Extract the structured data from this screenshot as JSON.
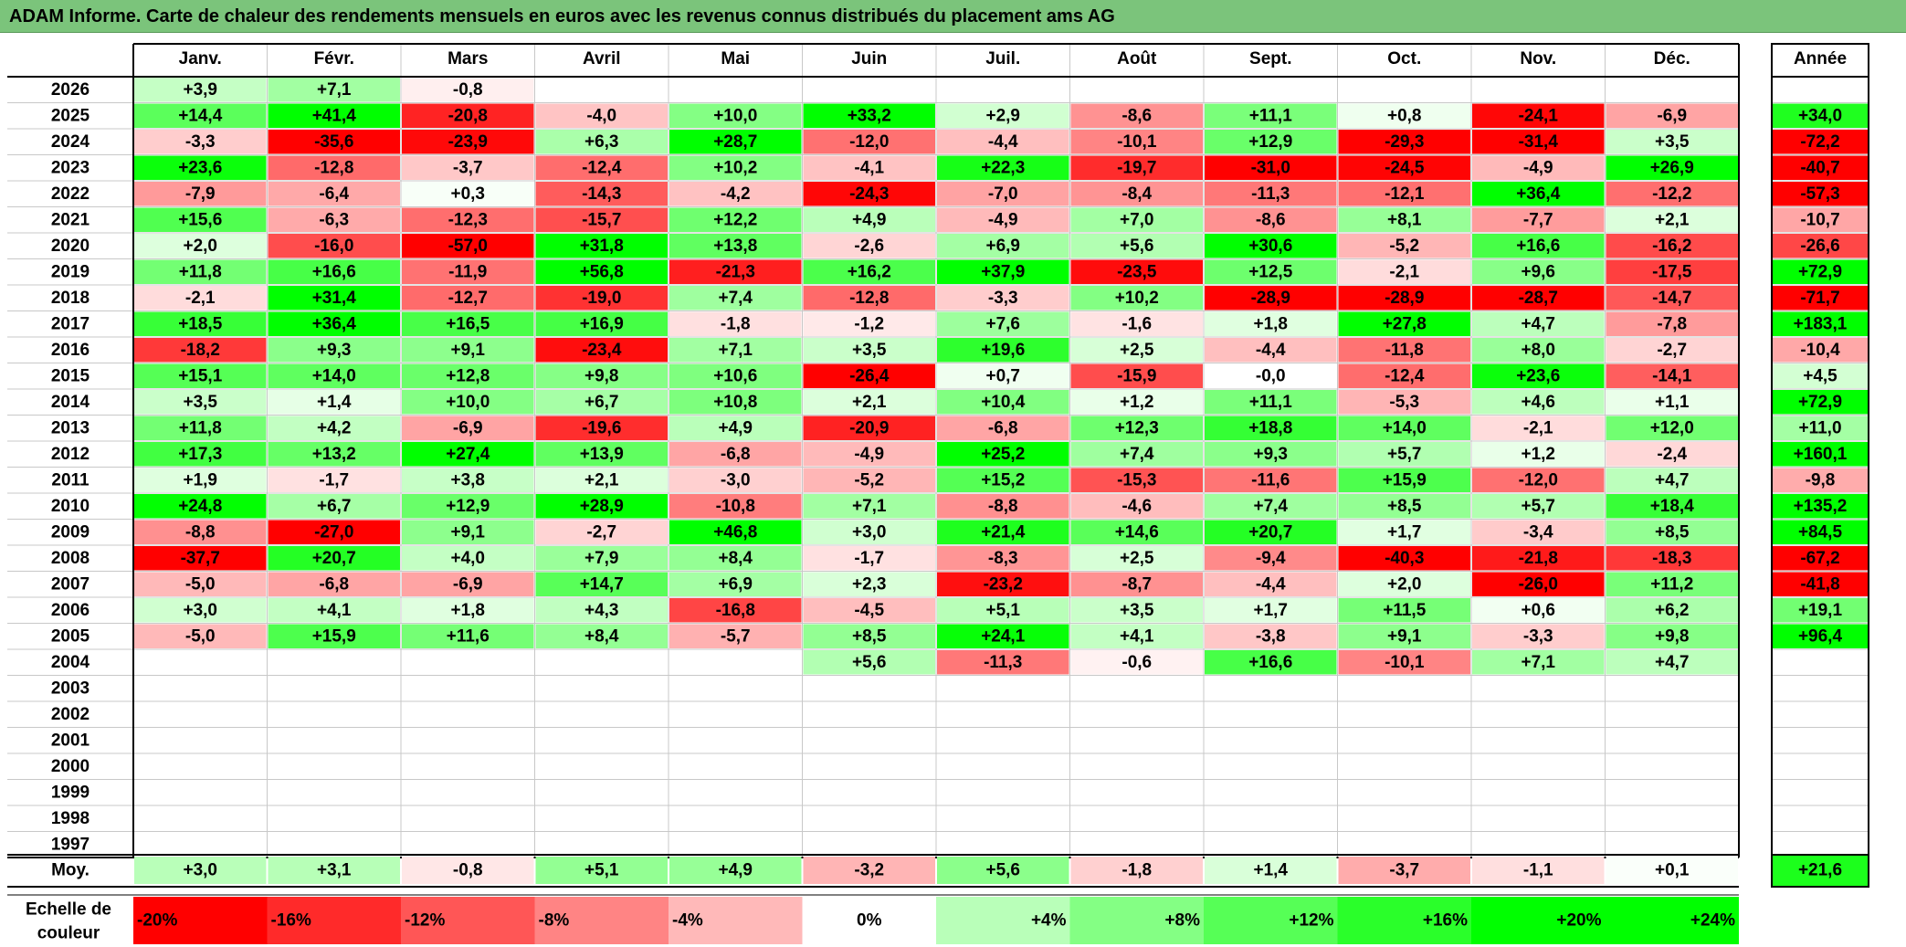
{
  "title": "ADAM Informe. Carte de chaleur des rendements mensuels en euros avec les revenus connus distribués du placement ams AG",
  "chart_data": {
    "type": "heatmap",
    "months": [
      "Janv.",
      "Févr.",
      "Mars",
      "Avril",
      "Mai",
      "Juin",
      "Juil.",
      "Août",
      "Sept.",
      "Oct.",
      "Nov.",
      "Déc."
    ],
    "annual_header": "Année",
    "years": [
      "2026",
      "2025",
      "2024",
      "2023",
      "2022",
      "2021",
      "2020",
      "2019",
      "2018",
      "2017",
      "2016",
      "2015",
      "2014",
      "2013",
      "2012",
      "2011",
      "2010",
      "2009",
      "2008",
      "2007",
      "2006",
      "2005",
      "2004",
      "2003",
      "2002",
      "2001",
      "2000",
      "1999",
      "1998",
      "1997"
    ],
    "values": [
      [
        "+3,9",
        "+7,1",
        "-0,8",
        "",
        "",
        "",
        "",
        "",
        "",
        "",
        "",
        ""
      ],
      [
        "+14,4",
        "+41,4",
        "-20,8",
        "-4,0",
        "+10,0",
        "+33,2",
        "+2,9",
        "-8,6",
        "+11,1",
        "+0,8",
        "-24,1",
        "-6,9"
      ],
      [
        "-3,3",
        "-35,6",
        "-23,9",
        "+6,3",
        "+28,7",
        "-12,0",
        "-4,4",
        "-10,1",
        "+12,9",
        "-29,3",
        "-31,4",
        "+3,5"
      ],
      [
        "+23,6",
        "-12,8",
        "-3,7",
        "-12,4",
        "+10,2",
        "-4,1",
        "+22,3",
        "-19,7",
        "-31,0",
        "-24,5",
        "-4,9",
        "+26,9"
      ],
      [
        "-7,9",
        "-6,4",
        "+0,3",
        "-14,3",
        "-4,2",
        "-24,3",
        "-7,0",
        "-8,4",
        "-11,3",
        "-12,1",
        "+36,4",
        "-12,2"
      ],
      [
        "+15,6",
        "-6,3",
        "-12,3",
        "-15,7",
        "+12,2",
        "+4,9",
        "-4,9",
        "+7,0",
        "-8,6",
        "+8,1",
        "-7,7",
        "+2,1"
      ],
      [
        "+2,0",
        "-16,0",
        "-57,0",
        "+31,8",
        "+13,8",
        "-2,6",
        "+6,9",
        "+5,6",
        "+30,6",
        "-5,2",
        "+16,6",
        "-16,2"
      ],
      [
        "+11,8",
        "+16,6",
        "-11,9",
        "+56,8",
        "-21,3",
        "+16,2",
        "+37,9",
        "-23,5",
        "+12,5",
        "-2,1",
        "+9,6",
        "-17,5"
      ],
      [
        "-2,1",
        "+31,4",
        "-12,7",
        "-19,0",
        "+7,4",
        "-12,8",
        "-3,3",
        "+10,2",
        "-28,9",
        "-28,9",
        "-28,7",
        "-14,7"
      ],
      [
        "+18,5",
        "+36,4",
        "+16,5",
        "+16,9",
        "-1,8",
        "-1,2",
        "+7,6",
        "-1,6",
        "+1,8",
        "+27,8",
        "+4,7",
        "-7,8"
      ],
      [
        "-18,2",
        "+9,3",
        "+9,1",
        "-23,4",
        "+7,1",
        "+3,5",
        "+19,6",
        "+2,5",
        "-4,4",
        "-11,8",
        "+8,0",
        "-2,7"
      ],
      [
        "+15,1",
        "+14,0",
        "+12,8",
        "+9,8",
        "+10,6",
        "-26,4",
        "+0,7",
        "-15,9",
        "-0,0",
        "-12,4",
        "+23,6",
        "-14,1"
      ],
      [
        "+3,5",
        "+1,4",
        "+10,0",
        "+6,7",
        "+10,8",
        "+2,1",
        "+10,4",
        "+1,2",
        "+11,1",
        "-5,3",
        "+4,6",
        "+1,1"
      ],
      [
        "+11,8",
        "+4,2",
        "-6,9",
        "-19,6",
        "+4,9",
        "-20,9",
        "-6,8",
        "+12,3",
        "+18,8",
        "+14,0",
        "-2,1",
        "+12,0"
      ],
      [
        "+17,3",
        "+13,2",
        "+27,4",
        "+13,9",
        "-6,8",
        "-4,9",
        "+25,2",
        "+7,4",
        "+9,3",
        "+5,7",
        "+1,2",
        "-2,4"
      ],
      [
        "+1,9",
        "-1,7",
        "+3,8",
        "+2,1",
        "-3,0",
        "-5,2",
        "+15,2",
        "-15,3",
        "-11,6",
        "+15,9",
        "-12,0",
        "+4,7"
      ],
      [
        "+24,8",
        "+6,7",
        "+12,9",
        "+28,9",
        "-10,8",
        "+7,1",
        "-8,8",
        "-4,6",
        "+7,4",
        "+8,5",
        "+5,7",
        "+18,4"
      ],
      [
        "-8,8",
        "-27,0",
        "+9,1",
        "-2,7",
        "+46,8",
        "+3,0",
        "+21,4",
        "+14,6",
        "+20,7",
        "+1,7",
        "-3,4",
        "+8,5"
      ],
      [
        "-37,7",
        "+20,7",
        "+4,0",
        "+7,9",
        "+8,4",
        "-1,7",
        "-8,3",
        "+2,5",
        "-9,4",
        "-40,3",
        "-21,8",
        "-18,3"
      ],
      [
        "-5,0",
        "-6,8",
        "-6,9",
        "+14,7",
        "+6,9",
        "+2,3",
        "-23,2",
        "-8,7",
        "-4,4",
        "+2,0",
        "-26,0",
        "+11,2"
      ],
      [
        "+3,0",
        "+4,1",
        "+1,8",
        "+4,3",
        "-16,8",
        "-4,5",
        "+5,1",
        "+3,5",
        "+1,7",
        "+11,5",
        "+0,6",
        "+6,2"
      ],
      [
        "-5,0",
        "+15,9",
        "+11,6",
        "+8,4",
        "-5,7",
        "+8,5",
        "+24,1",
        "+4,1",
        "-3,8",
        "+9,1",
        "-3,3",
        "+9,8"
      ],
      [
        "",
        "",
        "",
        "",
        "",
        "+5,6",
        "-11,3",
        "-0,6",
        "+16,6",
        "-10,1",
        "+7,1",
        "+4,7"
      ],
      [
        "",
        "",
        "",
        "",
        "",
        "",
        "",
        "",
        "",
        "",
        "",
        ""
      ],
      [
        "",
        "",
        "",
        "",
        "",
        "",
        "",
        "",
        "",
        "",
        "",
        ""
      ],
      [
        "",
        "",
        "",
        "",
        "",
        "",
        "",
        "",
        "",
        "",
        "",
        ""
      ],
      [
        "",
        "",
        "",
        "",
        "",
        "",
        "",
        "",
        "",
        "",
        "",
        ""
      ],
      [
        "",
        "",
        "",
        "",
        "",
        "",
        "",
        "",
        "",
        "",
        "",
        ""
      ],
      [
        "",
        "",
        "",
        "",
        "",
        "",
        "",
        "",
        "",
        "",
        "",
        ""
      ],
      [
        "",
        "",
        "",
        "",
        "",
        "",
        "",
        "",
        "",
        "",
        "",
        ""
      ]
    ],
    "annual": [
      "",
      "+34,0",
      "-72,2",
      "-40,7",
      "-57,3",
      "-10,7",
      "-26,6",
      "+72,9",
      "-71,7",
      "+183,1",
      "-10,4",
      "+4,5",
      "+72,9",
      "+11,0",
      "+160,1",
      "-9,8",
      "+135,2",
      "+84,5",
      "-67,2",
      "-41,8",
      "+19,1",
      "+96,4",
      "",
      "",
      "",
      "",
      "",
      "",
      "",
      ""
    ],
    "average_label": "Moy.",
    "averages": [
      "+3,0",
      "+3,1",
      "-0,8",
      "+5,1",
      "+4,9",
      "-3,2",
      "+5,6",
      "-1,8",
      "+1,4",
      "-3,7",
      "-1,1",
      "+0,1"
    ],
    "average_annual": "+21,6",
    "scale_label": "Echelle de couleur",
    "scale": [
      "-20%",
      "-16%",
      "-12%",
      "-8%",
      "-4%",
      "0%",
      "+4%",
      "+8%",
      "+12%",
      "+16%",
      "+20%",
      "+24%"
    ],
    "colors": {
      "negative": "#ff0000",
      "neutral": "#ffffff",
      "positive": "#00ff00",
      "title_bar": "#7bc47b"
    }
  }
}
